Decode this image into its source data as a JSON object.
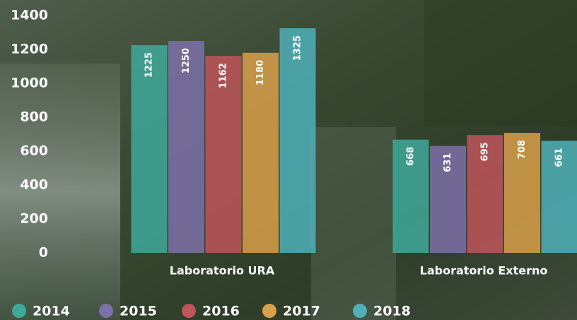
{
  "chart_data": {
    "type": "bar",
    "categories": [
      "Laboratorio URA",
      "Laboratorio Externo"
    ],
    "series": [
      {
        "name": "2014",
        "color": "#3fa99a",
        "values": [
          1225,
          668
        ]
      },
      {
        "name": "2015",
        "color": "#7e70a8",
        "values": [
          1250,
          631
        ]
      },
      {
        "name": "2016",
        "color": "#c0555a",
        "values": [
          1162,
          695
        ]
      },
      {
        "name": "2017",
        "color": "#d9a04a",
        "values": [
          1180,
          708
        ]
      },
      {
        "name": "2018",
        "color": "#4fb0b8",
        "values": [
          1325,
          661
        ]
      }
    ],
    "ylim": [
      0,
      1400
    ],
    "yticks": [
      0,
      200,
      400,
      600,
      800,
      1000,
      1200,
      1400
    ],
    "grid": false,
    "legend": "bottom"
  }
}
